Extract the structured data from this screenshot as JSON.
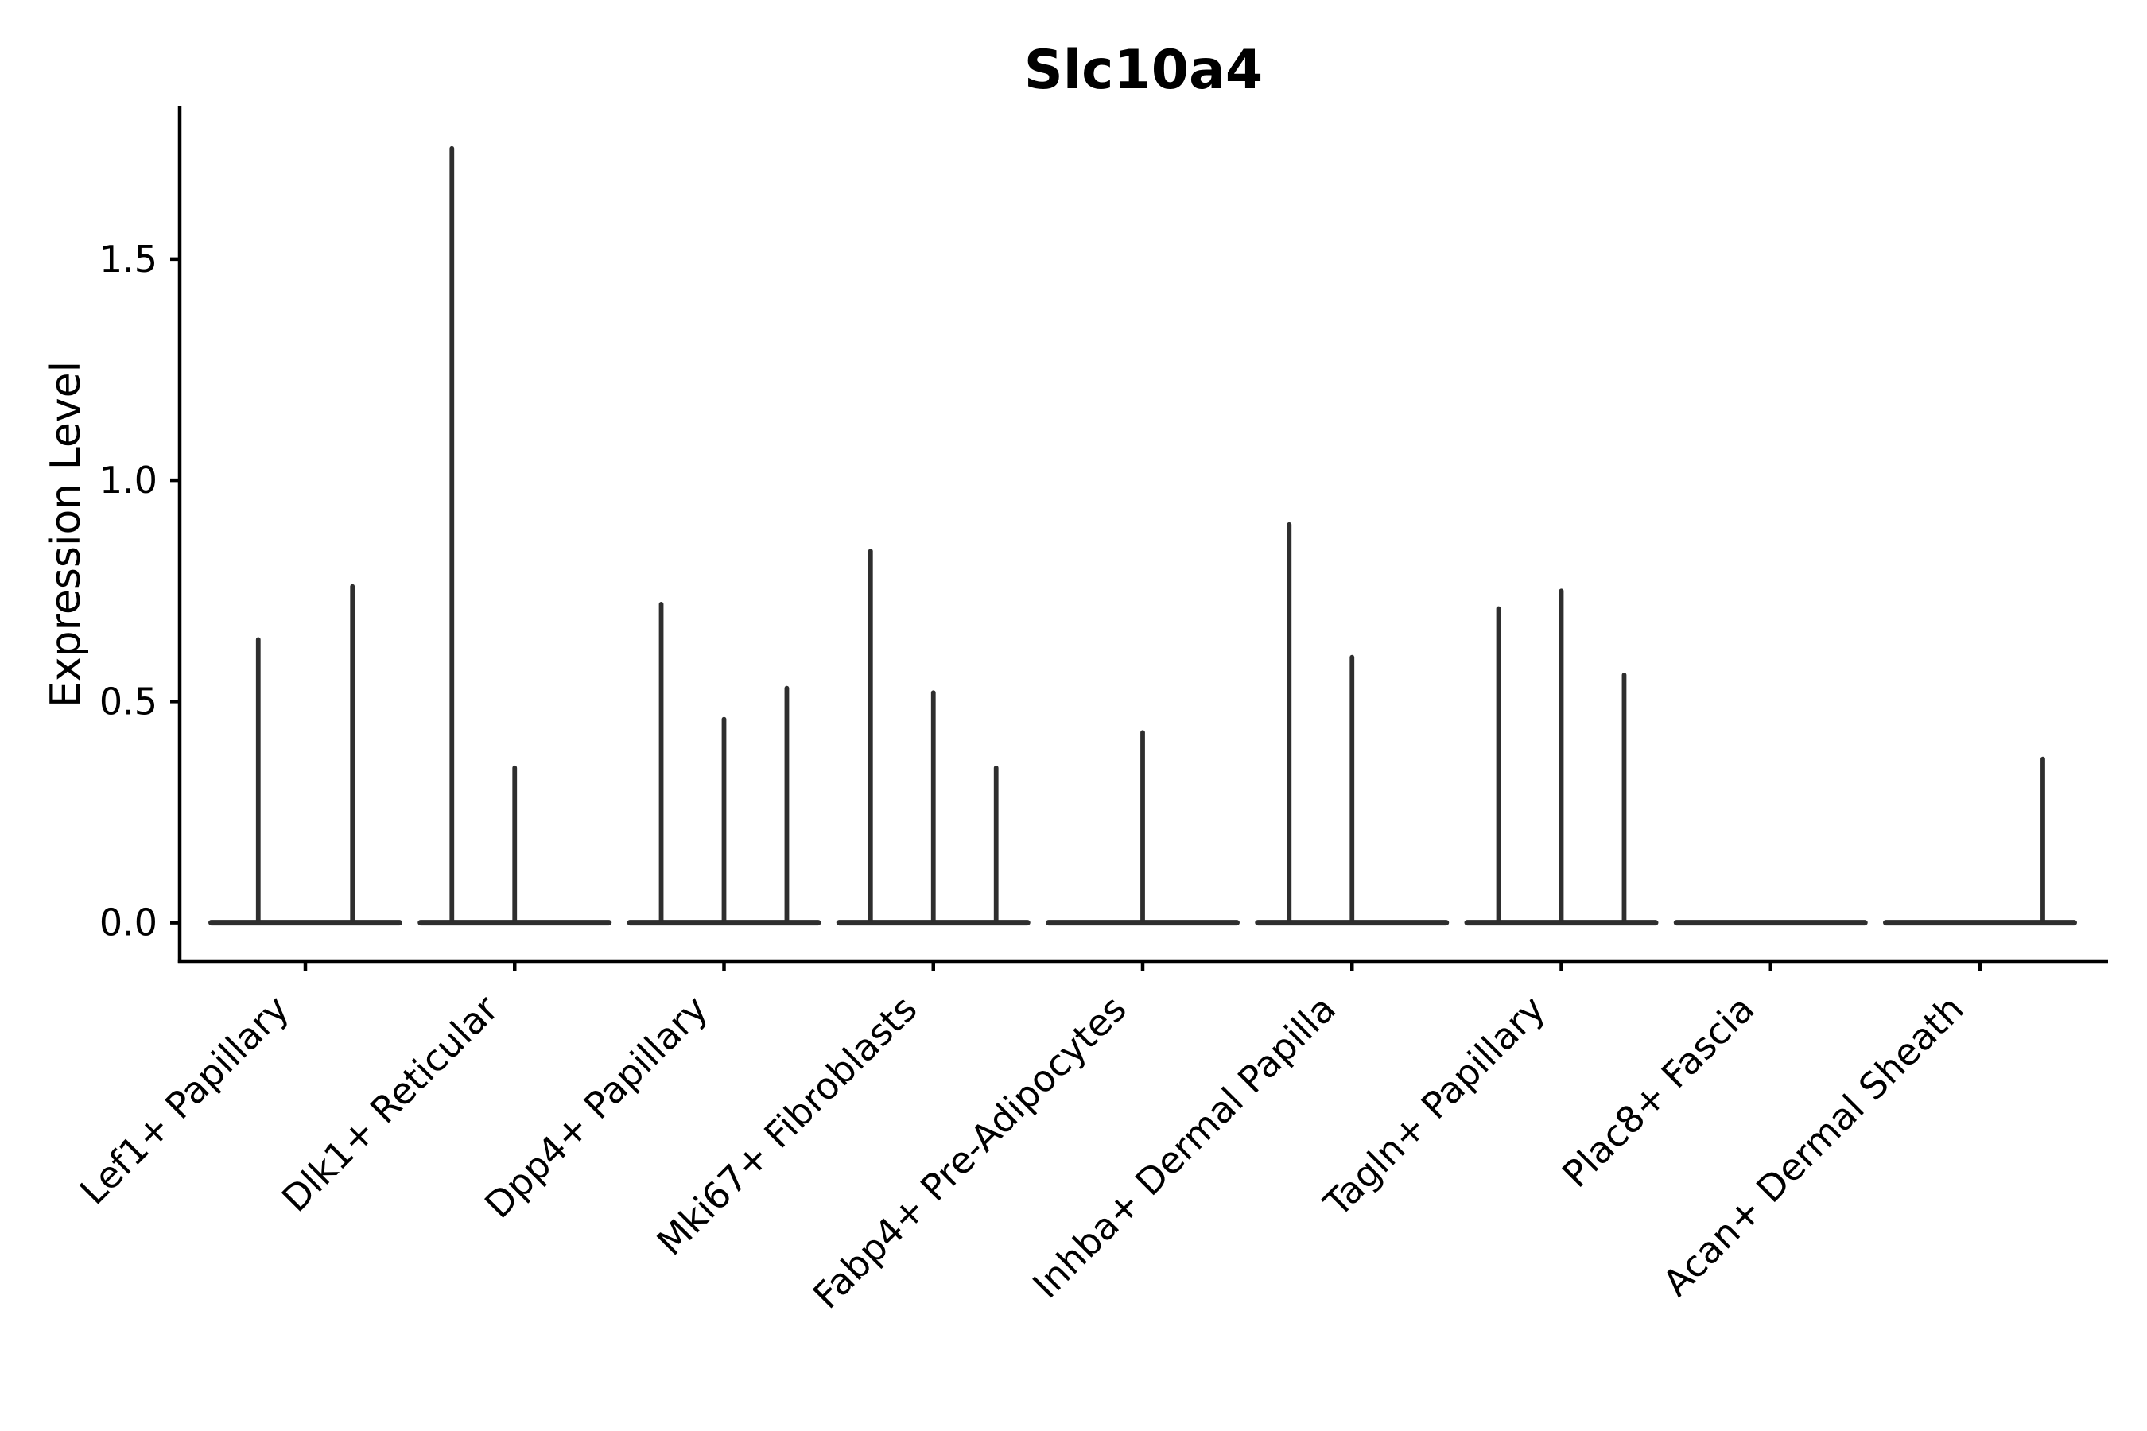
{
  "chart_data": {
    "type": "violin",
    "title": "Slc10a4",
    "ylabel": "Expression Level",
    "xlabel": "",
    "ylim": [
      -0.087,
      1.843
    ],
    "yticks": [
      0.0,
      0.5,
      1.0,
      1.5
    ],
    "ytick_labels": [
      "0.0",
      "0.5",
      "1.0",
      "1.5"
    ],
    "legend": "none",
    "grid": false,
    "categories": [
      "Lef1+ Papillary",
      "Dlk1+ Reticular",
      "Dpp4+ Papillary",
      "Mki67+ Fibroblasts",
      "Fabp4+ Pre-Adipocytes",
      "Inhba+ Dermal Papilla",
      "Tagln+ Papillary",
      "Plac8+ Fascia",
      "Acan+ Dermal Sheath"
    ],
    "groups": [
      {
        "category": "Lef1+ Papillary",
        "violin_peaks": [
          0.64,
          0.76
        ]
      },
      {
        "category": "Dlk1+ Reticular",
        "violin_peaks": [
          1.75,
          0.35,
          0
        ]
      },
      {
        "category": "Dpp4+ Papillary",
        "violin_peaks": [
          0.72,
          0.46,
          0.53
        ]
      },
      {
        "category": "Mki67+ Fibroblasts",
        "violin_peaks": [
          0.84,
          0.52,
          0.35
        ]
      },
      {
        "category": "Fabp4+ Pre-Adipocytes",
        "violin_peaks": [
          0,
          0.43,
          0
        ]
      },
      {
        "category": "Inhba+ Dermal Papilla",
        "violin_peaks": [
          0.9,
          0.6,
          0
        ]
      },
      {
        "category": "Tagln+ Papillary",
        "violin_peaks": [
          0.71,
          0.75,
          0.56
        ]
      },
      {
        "category": "Plac8+ Fascia",
        "violin_peaks": [
          0,
          0,
          0
        ]
      },
      {
        "category": "Acan+ Dermal Sheath",
        "violin_peaks": [
          0,
          0,
          0.37
        ]
      }
    ],
    "note": "Violins are collapsed to a flat base at 0 with a thin spike to the max expression value; peak 0 means fully flat violin",
    "colors": {
      "violin_line": "#2e2e2e",
      "axis": "#000000",
      "background": "#ffffff"
    }
  }
}
